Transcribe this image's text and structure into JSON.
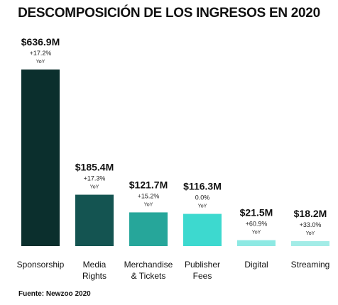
{
  "chart_data": {
    "type": "bar",
    "title": "DESCOMPOSICIÓN DE LOS INGRESOS EN 2020",
    "categories": [
      [
        "Sponsorship"
      ],
      [
        "Media",
        "Rights"
      ],
      [
        "Merchandise",
        "& Tickets"
      ],
      [
        "Publisher",
        "Fees"
      ],
      [
        "Digital"
      ],
      [
        "Streaming"
      ]
    ],
    "values": [
      636.9,
      185.4,
      121.7,
      116.3,
      21.5,
      18.2
    ],
    "value_labels": [
      "$636.9M",
      "$185.4M",
      "$121.7M",
      "$116.3M",
      "$21.5M",
      "$18.2M"
    ],
    "growth_labels": [
      "+17.2%",
      "+17.3%",
      "+15.2%",
      "0.0%",
      "+60.9%",
      "+33.0%"
    ],
    "growth_unit": "YoY",
    "unit": "$M",
    "colors": [
      "#0b2f2d",
      "#145451",
      "#26a69a",
      "#3dd9cf",
      "#8de9e3",
      "#a3ece7"
    ],
    "source": "Fuente: Newzoo 2020",
    "grid": false,
    "legend": "none"
  }
}
